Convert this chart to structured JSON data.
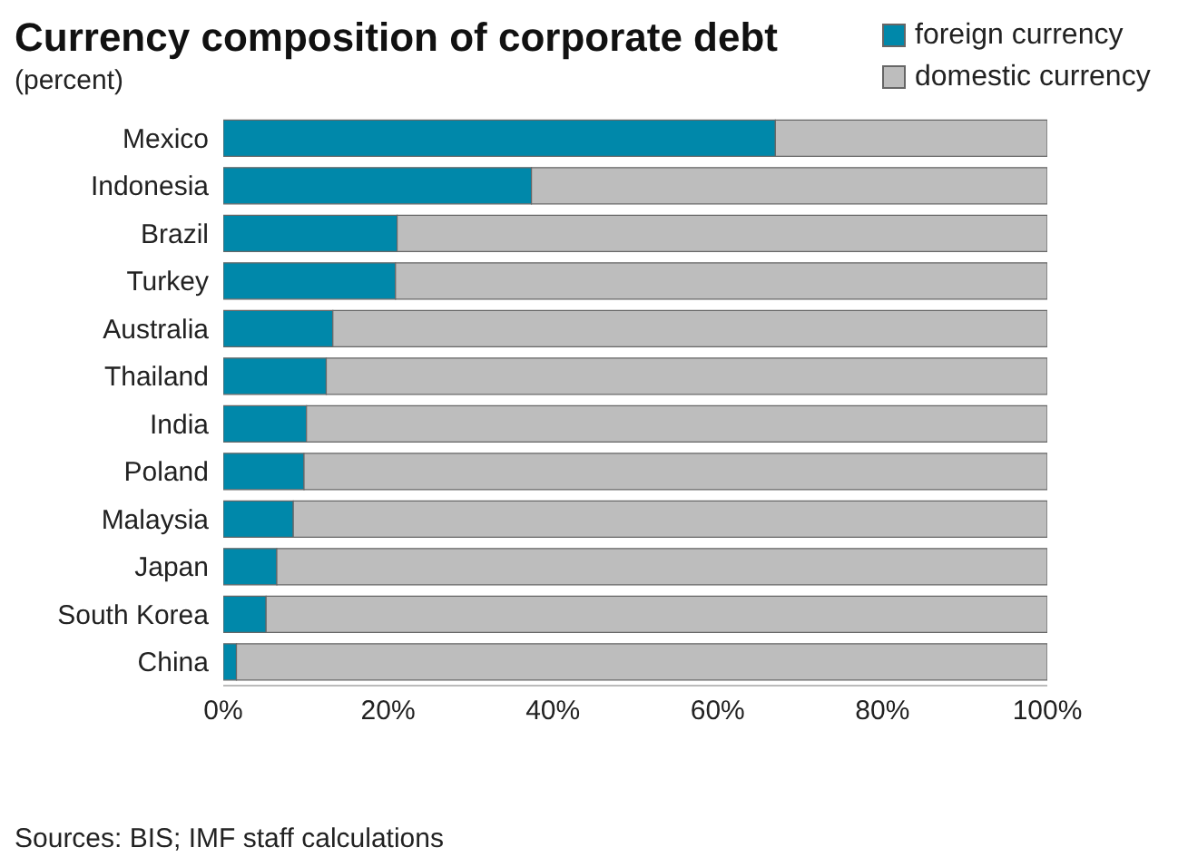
{
  "chart_data": {
    "type": "bar",
    "orientation": "horizontal",
    "stacked": true,
    "title": "Currency composition of corporate debt",
    "subtitle": "(percent)",
    "categories": [
      "Mexico",
      "Indonesia",
      "Brazil",
      "Turkey",
      "Australia",
      "Thailand",
      "India",
      "Poland",
      "Malaysia",
      "Japan",
      "South Korea",
      "China"
    ],
    "series": [
      {
        "name": "foreign currency",
        "color": "#0088aa",
        "values": [
          67.0,
          37.4,
          21.1,
          20.9,
          13.3,
          12.5,
          10.1,
          9.8,
          8.5,
          6.5,
          5.2,
          1.6
        ]
      },
      {
        "name": "domestic currency",
        "color": "#bdbdbd",
        "values": [
          33.0,
          62.6,
          78.9,
          79.1,
          86.7,
          87.5,
          89.9,
          90.2,
          91.5,
          93.5,
          94.8,
          98.4
        ]
      }
    ],
    "xlim": [
      0,
      100
    ],
    "xticks": [
      {
        "value": 0,
        "label": "0%"
      },
      {
        "value": 20,
        "label": "20%"
      },
      {
        "value": 40,
        "label": "40%"
      },
      {
        "value": 60,
        "label": "60%"
      },
      {
        "value": 80,
        "label": "80%"
      },
      {
        "value": 100,
        "label": "100%"
      }
    ],
    "legend": "top right",
    "annotations": [
      "Sources: BIS; IMF staff calculations"
    ]
  }
}
